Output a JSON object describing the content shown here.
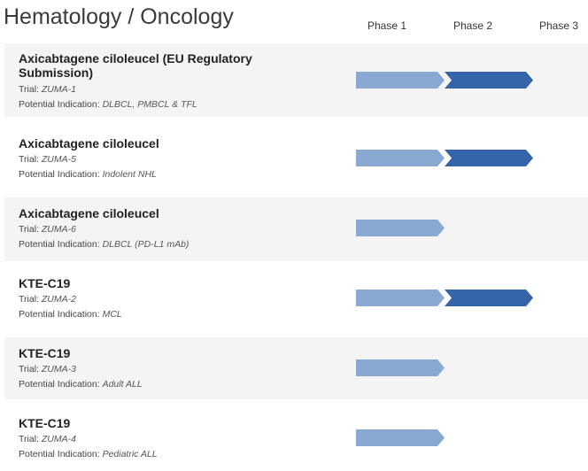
{
  "page_title": "Hematology / Oncology",
  "phases": [
    "Phase 1",
    "Phase 2",
    "Phase 3"
  ],
  "colors": {
    "phase1": "#8aa9d2",
    "phase2": "#3565a9",
    "row_shade": "#f4f4f4"
  },
  "trial_label": "Trial:",
  "indication_label": "Potential Indication:",
  "programs": [
    {
      "name": "Axicabtagene ciloleucel (EU Regulatory Submission)",
      "trial": "ZUMA-1",
      "indication": "DLBCL, PMBCL & TFL",
      "phases_reached": 2
    },
    {
      "name": "Axicabtagene ciloleucel",
      "trial": "ZUMA-5",
      "indication": "Indolent NHL",
      "phases_reached": 2
    },
    {
      "name": "Axicabtagene ciloleucel",
      "trial": "ZUMA-6",
      "indication": "DLBCL (PD-L1 mAb)",
      "phases_reached": 1
    },
    {
      "name": "KTE-C19",
      "trial": "ZUMA-2",
      "indication": "MCL",
      "phases_reached": 2
    },
    {
      "name": "KTE-C19",
      "trial": "ZUMA-3",
      "indication": "Adult ALL",
      "phases_reached": 1
    },
    {
      "name": "KTE-C19",
      "trial": "ZUMA-4",
      "indication": "Pediatric ALL",
      "phases_reached": 1
    }
  ]
}
